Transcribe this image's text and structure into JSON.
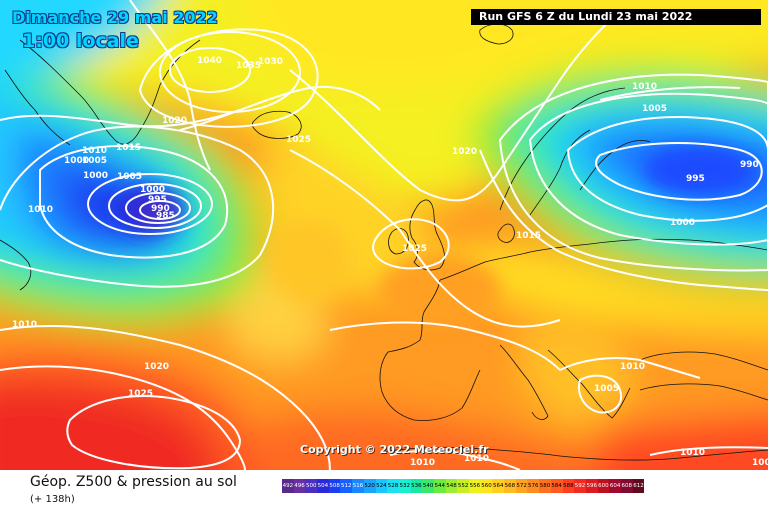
{
  "header": {
    "date": "Dimanche 29 mai 2022",
    "local_time": "1:00 locale",
    "run_info": "Run GFS 6 Z du Lundi 23 mai 2022"
  },
  "copyright": "Copyright © 2022 Meteociel.fr",
  "footer": {
    "title": "Géop. Z500 & pression au sol",
    "subtitle": "(+ 138h)"
  },
  "legend": {
    "units": "dam",
    "values": [
      "492",
      "496",
      "500",
      "504",
      "508",
      "512",
      "516",
      "520",
      "524",
      "528",
      "532",
      "536",
      "540",
      "544",
      "548",
      "552",
      "556",
      "560",
      "564",
      "568",
      "572",
      "576",
      "580",
      "584",
      "588",
      "592",
      "596",
      "600",
      "604",
      "608",
      "612"
    ],
    "colors": [
      "#5a2a8a",
      "#6a2fa5",
      "#4b2fc0",
      "#2a2ad8",
      "#1a3ff0",
      "#1860ff",
      "#1a86ff",
      "#1aa6ff",
      "#1ac6ff",
      "#1ae2f0",
      "#1af0d0",
      "#1ae8a0",
      "#3ae870",
      "#6aec40",
      "#9af030",
      "#c8f020",
      "#eef020",
      "#ffe420",
      "#ffd020",
      "#ffbc20",
      "#ffa420",
      "#ff8c20",
      "#ff7020",
      "#ff5a20",
      "#ff4020",
      "#f22a20",
      "#dc1a20",
      "#c01020",
      "#a00a30",
      "#800a30",
      "#600a20"
    ]
  },
  "isobar_labels": [
    {
      "id": "isobar-1040",
      "text": "1040"
    },
    {
      "id": "isobar-1035",
      "text": "1035"
    },
    {
      "id": "isobar-1030",
      "text": "1030"
    },
    {
      "id": "isobar-1020-greenland",
      "text": "1020"
    },
    {
      "id": "isobar-1025-atlantic",
      "text": "1025"
    },
    {
      "id": "isobar-1015-west",
      "text": "1015"
    },
    {
      "id": "isobar-1010-west-a",
      "text": "1010"
    },
    {
      "id": "isobar-1005-west-a",
      "text": "1005"
    },
    {
      "id": "isobar-1000-west-a",
      "text": "1000"
    },
    {
      "id": "isobar-1000-west-b",
      "text": "1000"
    },
    {
      "id": "isobar-1005-low",
      "text": "1005"
    },
    {
      "id": "isobar-1000-low",
      "text": "1000"
    },
    {
      "id": "isobar-995-low",
      "text": "995"
    },
    {
      "id": "isobar-990-low",
      "text": "990"
    },
    {
      "id": "isobar-985-low",
      "text": "985"
    },
    {
      "id": "isobar-1010-west-b",
      "text": "1010"
    },
    {
      "id": "isobar-1020-center",
      "text": "1020"
    },
    {
      "id": "isobar-1025-uk",
      "text": "1025"
    },
    {
      "id": "isobar-1015-north-sea",
      "text": "1015"
    },
    {
      "id": "isobar-1010-scandinavia",
      "text": "1010"
    },
    {
      "id": "isobar-1005-scandinavia",
      "text": "1005"
    },
    {
      "id": "isobar-995-russia",
      "text": "995"
    },
    {
      "id": "isobar-990-russia",
      "text": "990"
    },
    {
      "id": "isobar-1000-russia",
      "text": "1000"
    },
    {
      "id": "isobar-1010-sw",
      "text": "1010"
    },
    {
      "id": "isobar-1020-sw",
      "text": "1020"
    },
    {
      "id": "isobar-1025-sw",
      "text": "1025"
    },
    {
      "id": "isobar-1010-balkans",
      "text": "1010"
    },
    {
      "id": "isobar-1005-greece",
      "text": "1005"
    },
    {
      "id": "isobar-1010-africa-a",
      "text": "1010"
    },
    {
      "id": "isobar-1010-africa-b",
      "text": "1010"
    },
    {
      "id": "isobar-1010-east",
      "text": "1010"
    },
    {
      "id": "isobar-1005-east",
      "text": "1005"
    }
  ]
}
